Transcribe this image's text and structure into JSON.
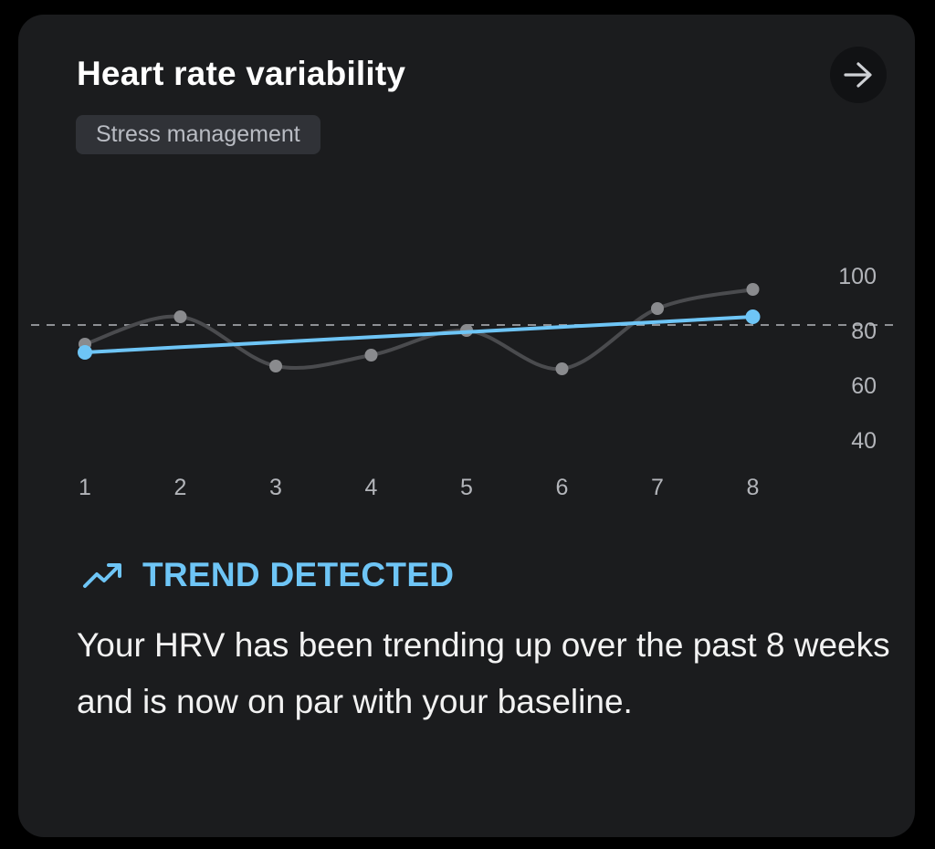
{
  "card": {
    "title": "Heart rate variability",
    "tag": "Stress management",
    "open_icon": "arrow-right-icon"
  },
  "chart_data": {
    "type": "line",
    "x": [
      1,
      2,
      3,
      4,
      5,
      6,
      7,
      8
    ],
    "x_tick_labels": [
      "1",
      "2",
      "3",
      "4",
      "5",
      "6",
      "7",
      "8"
    ],
    "y_tick_values": [
      100,
      80,
      60,
      40
    ],
    "y_tick_labels": [
      "100",
      "80",
      "60",
      "40"
    ],
    "ylim": [
      40,
      100
    ],
    "baseline": 82,
    "series": [
      {
        "values": [
          75,
          85,
          67,
          71,
          80,
          66,
          88,
          95
        ],
        "color": "#8a8b8e"
      },
      {
        "values": [
          72,
          73.9,
          75.7,
          77.6,
          79.4,
          81.3,
          83.1,
          85
        ],
        "color": "#6ec5f6"
      }
    ],
    "grid": false,
    "legend": "none"
  },
  "trend": {
    "label": "TREND DETECTED",
    "icon": "trending-up-icon",
    "color": "#6ec5f6"
  },
  "description": "Your HRV has been trending up over the past 8 weeks and is now on par with your baseline."
}
